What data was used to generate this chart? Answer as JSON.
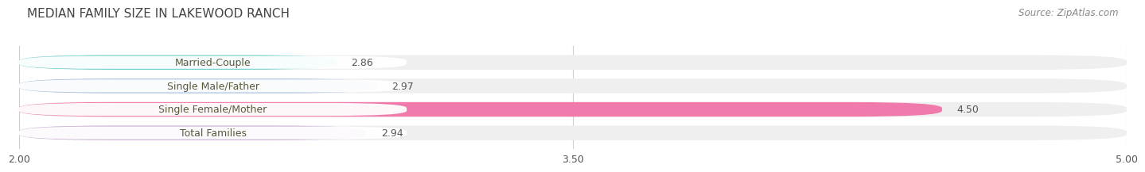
{
  "title": "MEDIAN FAMILY SIZE IN LAKEWOOD RANCH",
  "source": "Source: ZipAtlas.com",
  "categories": [
    "Married-Couple",
    "Single Male/Father",
    "Single Female/Mother",
    "Total Families"
  ],
  "values": [
    2.86,
    2.97,
    4.5,
    2.94
  ],
  "bar_colors": [
    "#6ecfca",
    "#a8bfe0",
    "#f07aab",
    "#c8afd4"
  ],
  "bar_bg_color": "#efefef",
  "xlim": [
    2.0,
    5.0
  ],
  "xticks": [
    2.0,
    3.5,
    5.0
  ],
  "xtick_labels": [
    "2.00",
    "3.50",
    "5.00"
  ],
  "label_fontsize": 9.0,
  "value_fontsize": 9.0,
  "title_fontsize": 11,
  "source_fontsize": 8.5,
  "bar_height": 0.62,
  "background_color": "#ffffff",
  "label_box_color": "#ffffff",
  "label_text_color": "#5a5a3a",
  "value_text_color": "#555555",
  "grid_color": "#cccccc",
  "title_color": "#444444"
}
